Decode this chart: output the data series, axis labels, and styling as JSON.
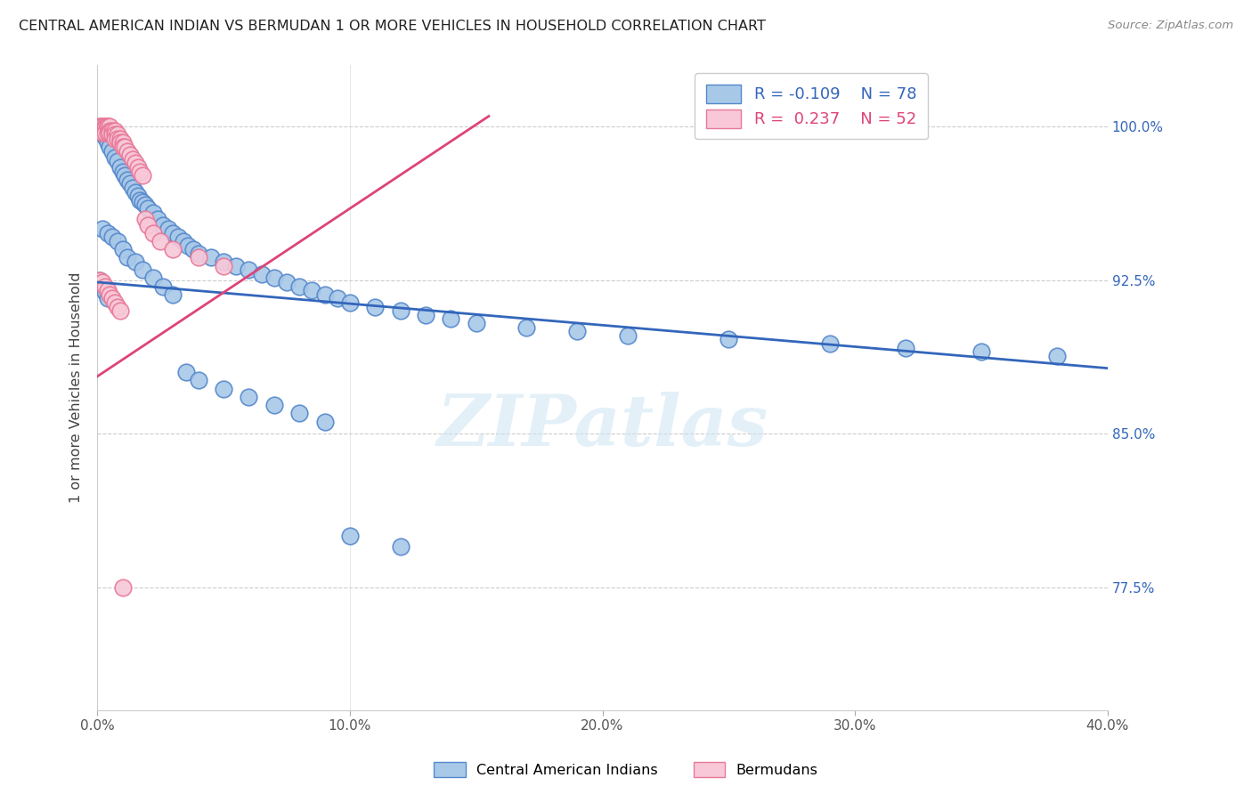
{
  "title": "CENTRAL AMERICAN INDIAN VS BERMUDAN 1 OR MORE VEHICLES IN HOUSEHOLD CORRELATION CHART",
  "source": "Source: ZipAtlas.com",
  "ylabel": "1 or more Vehicles in Household",
  "ytick_values": [
    0.775,
    0.85,
    0.925,
    1.0
  ],
  "ytick_labels": [
    "77.5%",
    "85.0%",
    "92.5%",
    "100.0%"
  ],
  "xtick_values": [
    0.0,
    0.1,
    0.2,
    0.3,
    0.4
  ],
  "xtick_labels": [
    "0.0%",
    "10.0%",
    "20.0%",
    "30.0%",
    "40.0%"
  ],
  "xlim": [
    0.0,
    0.4
  ],
  "ylim": [
    0.715,
    1.03
  ],
  "watermark": "ZIPatlas",
  "legend_blue_R": "-0.109",
  "legend_blue_N": "78",
  "legend_pink_R": "0.237",
  "legend_pink_N": "52",
  "legend_label_blue": "Central American Indians",
  "legend_label_pink": "Bermudans",
  "blue_face_color": "#a8c8e8",
  "blue_edge_color": "#5588cc",
  "pink_face_color": "#f8c8d8",
  "pink_edge_color": "#e87898",
  "blue_line_color": "#3366bb",
  "pink_line_color": "#dd4477",
  "grid_color": "#cccccc",
  "title_color": "#222222",
  "source_color": "#888888",
  "axis_label_color": "#444444",
  "right_tick_color": "#3366bb",
  "watermark_color": "#cce4f4",
  "blue_trend_x": [
    0.0,
    0.4
  ],
  "blue_trend_y": [
    0.924,
    0.882
  ],
  "pink_trend_x": [
    0.0,
    0.155
  ],
  "pink_trend_y": [
    0.878,
    1.005
  ],
  "blue_x": [
    0.002,
    0.003,
    0.004,
    0.005,
    0.006,
    0.007,
    0.008,
    0.009,
    0.01,
    0.011,
    0.012,
    0.013,
    0.014,
    0.015,
    0.016,
    0.017,
    0.018,
    0.019,
    0.02,
    0.022,
    0.024,
    0.026,
    0.028,
    0.03,
    0.032,
    0.034,
    0.036,
    0.038,
    0.04,
    0.045,
    0.05,
    0.055,
    0.06,
    0.065,
    0.07,
    0.075,
    0.08,
    0.085,
    0.09,
    0.095,
    0.1,
    0.11,
    0.12,
    0.13,
    0.14,
    0.15,
    0.17,
    0.19,
    0.21,
    0.25,
    0.29,
    0.32,
    0.35,
    0.38,
    0.002,
    0.004,
    0.006,
    0.008,
    0.01,
    0.012,
    0.015,
    0.018,
    0.022,
    0.026,
    0.03,
    0.035,
    0.04,
    0.05,
    0.06,
    0.07,
    0.08,
    0.09,
    0.1,
    0.12,
    0.001,
    0.002,
    0.003,
    0.004
  ],
  "blue_y": [
    0.998,
    0.995,
    0.992,
    0.99,
    0.988,
    0.985,
    0.983,
    0.98,
    0.978,
    0.976,
    0.974,
    0.972,
    0.97,
    0.968,
    0.966,
    0.964,
    0.963,
    0.962,
    0.96,
    0.958,
    0.955,
    0.952,
    0.95,
    0.948,
    0.946,
    0.944,
    0.942,
    0.94,
    0.938,
    0.936,
    0.934,
    0.932,
    0.93,
    0.928,
    0.926,
    0.924,
    0.922,
    0.92,
    0.918,
    0.916,
    0.914,
    0.912,
    0.91,
    0.908,
    0.906,
    0.904,
    0.902,
    0.9,
    0.898,
    0.896,
    0.894,
    0.892,
    0.89,
    0.888,
    0.95,
    0.948,
    0.946,
    0.944,
    0.94,
    0.936,
    0.934,
    0.93,
    0.926,
    0.922,
    0.918,
    0.88,
    0.876,
    0.872,
    0.868,
    0.864,
    0.86,
    0.856,
    0.8,
    0.795,
    0.925,
    0.922,
    0.919,
    0.916
  ],
  "pink_x": [
    0.001,
    0.001,
    0.001,
    0.002,
    0.002,
    0.002,
    0.003,
    0.003,
    0.003,
    0.003,
    0.004,
    0.004,
    0.004,
    0.005,
    0.005,
    0.005,
    0.006,
    0.006,
    0.007,
    0.007,
    0.007,
    0.008,
    0.008,
    0.009,
    0.009,
    0.01,
    0.01,
    0.011,
    0.012,
    0.013,
    0.014,
    0.015,
    0.016,
    0.017,
    0.018,
    0.019,
    0.02,
    0.022,
    0.025,
    0.03,
    0.04,
    0.05,
    0.001,
    0.002,
    0.003,
    0.004,
    0.005,
    0.006,
    0.007,
    0.008,
    0.009,
    0.01
  ],
  "pink_y": [
    1.0,
    1.0,
    0.998,
    1.0,
    1.0,
    0.997,
    1.0,
    1.0,
    0.999,
    0.997,
    1.0,
    1.0,
    0.997,
    1.0,
    0.998,
    0.997,
    0.998,
    0.996,
    0.998,
    0.996,
    0.994,
    0.996,
    0.994,
    0.994,
    0.992,
    0.992,
    0.99,
    0.99,
    0.988,
    0.986,
    0.984,
    0.982,
    0.98,
    0.978,
    0.976,
    0.955,
    0.952,
    0.948,
    0.944,
    0.94,
    0.936,
    0.932,
    0.925,
    0.924,
    0.922,
    0.92,
    0.918,
    0.916,
    0.914,
    0.912,
    0.91,
    0.775
  ]
}
